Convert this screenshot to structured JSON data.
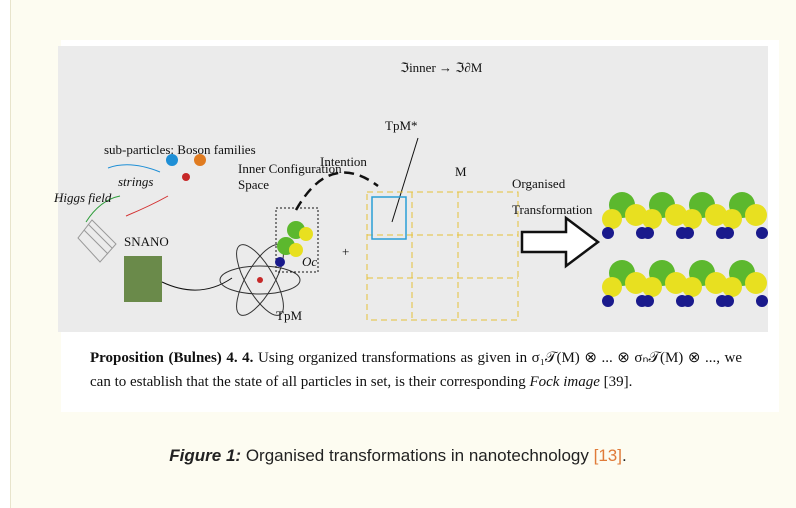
{
  "figure": {
    "diagram": {
      "top_formula": "ℑinner → ℑ∂M",
      "bosons": "sub-particles: Boson families",
      "strings": "strings",
      "higgs": "Higgs field",
      "inner_1": "Inner Configuration",
      "inner_2": "Space",
      "intention": "Intention",
      "tpm_star": "TpM*",
      "m": "M",
      "organised_1": "Organised",
      "organised_2": "Transformation",
      "snano": "SNANO",
      "oc": "Oc",
      "plus": "+",
      "tpm": "TpM"
    },
    "proposition": {
      "heading": "Proposition (Bulnes) 4. 4.",
      "text_before": "Using organized transformations as given in",
      "formula": "σ₁𝒯(M) ⊗ ... ⊗ σₙ𝒯(M) ⊗ ...,",
      "text_after": "we can to establish that the state of all particles in set, is their corresponding",
      "fock": "Fock image",
      "ref": "[39]."
    },
    "caption": {
      "label": "Figure 1:",
      "text": "Organised transformations in nanotechnology",
      "ref": "[13]",
      "end": "."
    }
  }
}
